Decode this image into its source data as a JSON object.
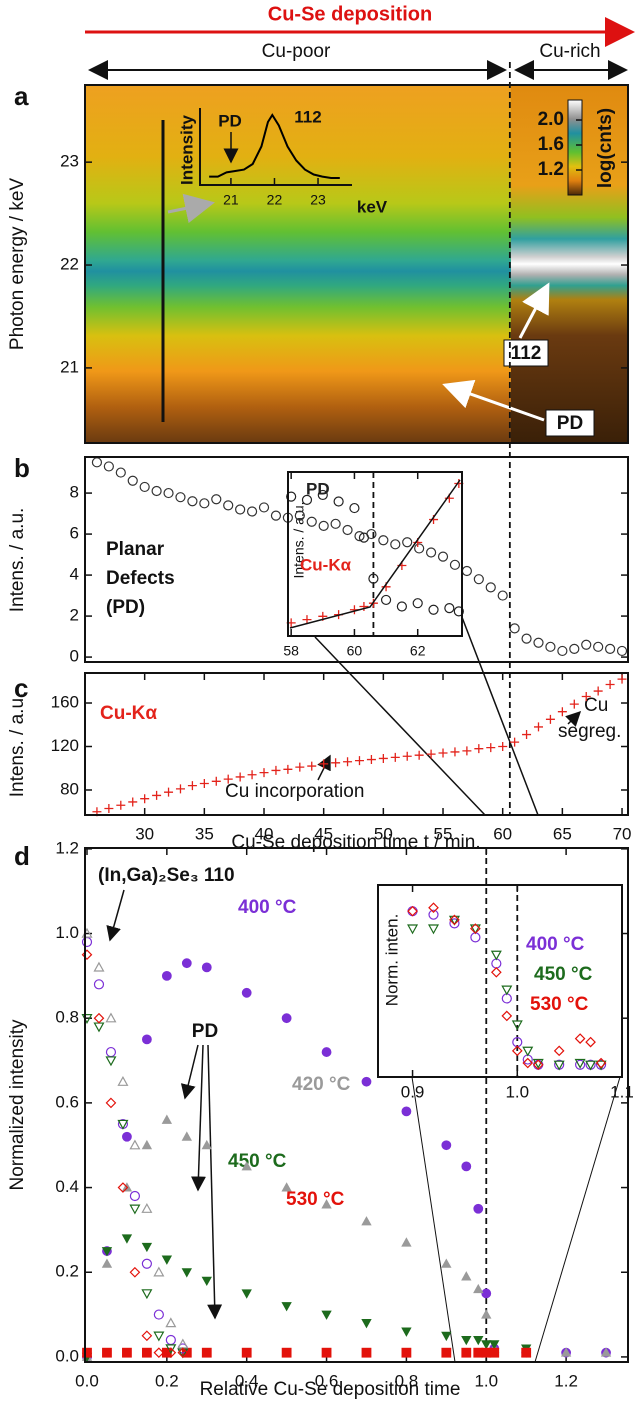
{
  "header": {
    "title": "Cu-Se deposition",
    "regions": [
      "Cu-poor",
      "Cu-rich"
    ]
  },
  "chart_data": [
    {
      "panel": "a",
      "type": "heatmap",
      "ylabel": "Photon energy / keV",
      "ylim": [
        20.27,
        23.75
      ],
      "yticks": [
        21,
        22,
        23
      ],
      "colorbar": {
        "label": "log(cnts)",
        "lim": [
          0.8,
          2.32
        ],
        "ticks": [
          1.2,
          1.6,
          {
            "value": 2.0,
            "label": "2.0"
          }
        ]
      },
      "annotations": [
        "112",
        "PD"
      ]
    },
    {
      "type": "line",
      "ylabel": "Intensity",
      "xunit": "keV",
      "annotations": [
        "PD",
        "112"
      ],
      "color": "#000000",
      "x": [
        20.5,
        20.7,
        20.9,
        21.1,
        21.3,
        21.5,
        21.7,
        21.85,
        21.95,
        22.1,
        22.3,
        22.5,
        22.7,
        22.9,
        23.1,
        23.3,
        23.5
      ],
      "values": [
        0.12,
        0.12,
        0.18,
        0.2,
        0.22,
        0.3,
        0.55,
        0.9,
        1.0,
        0.85,
        0.55,
        0.35,
        0.22,
        0.15,
        0.12,
        0.1,
        0.1
      ],
      "xlim": [
        20.29,
        23.78
      ],
      "ylim": [
        0,
        1.1
      ],
      "xticks": [
        21,
        22,
        23
      ]
    },
    {
      "panel": "b",
      "type": "scatter",
      "ylabel": "Intens. / a.u.",
      "annotations": [
        "Planar",
        "Defects",
        "(PD)"
      ],
      "marker": "circle-open",
      "color": "#333333",
      "xlim": [
        25,
        70.5
      ],
      "ylim": [
        -0.24,
        9.76
      ],
      "yticks": [
        0,
        2,
        4,
        6,
        8
      ],
      "x": [
        26,
        27,
        28,
        29,
        30,
        31,
        32,
        33,
        34,
        35,
        36,
        37,
        38,
        39,
        40,
        41,
        42,
        43,
        44,
        45,
        46,
        47,
        48,
        49,
        50,
        51,
        52,
        53,
        54,
        55,
        56,
        57,
        58,
        59,
        60,
        61,
        62,
        63,
        64,
        65,
        66,
        67,
        68,
        69,
        70
      ],
      "values": [
        9.5,
        9.3,
        9.0,
        8.6,
        8.3,
        8.1,
        8.0,
        7.8,
        7.6,
        7.5,
        7.7,
        7.4,
        7.2,
        7.1,
        7.3,
        6.9,
        6.8,
        6.9,
        6.6,
        6.4,
        6.5,
        6.2,
        5.9,
        6.0,
        5.7,
        5.5,
        5.6,
        5.3,
        5.1,
        4.9,
        4.5,
        4.2,
        3.8,
        3.4,
        3.0,
        1.4,
        0.9,
        0.7,
        0.5,
        0.3,
        0.4,
        0.6,
        0.5,
        0.4,
        0.3
      ]
    },
    {
      "panel": "c",
      "type": "scatter",
      "ylabel": "Intens. / a.u.",
      "xlabel": "Cu-Se deposition time t / min.",
      "annotations": [
        "Cu-Kα",
        "Cu incorporation",
        "Cu",
        "segreg."
      ],
      "marker": "plus",
      "color": "#e3231b",
      "xlim": [
        25,
        70.5
      ],
      "ylim": [
        57,
        187.6
      ],
      "yticks": [
        80,
        120,
        160
      ],
      "xticks": [
        30,
        35,
        40,
        45,
        50,
        55,
        60,
        65,
        70
      ],
      "vline": 60.6,
      "x": [
        26,
        27,
        28,
        29,
        30,
        31,
        32,
        33,
        34,
        35,
        36,
        37,
        38,
        39,
        40,
        41,
        42,
        43,
        44,
        45,
        46,
        47,
        48,
        49,
        50,
        51,
        52,
        53,
        54,
        55,
        56,
        57,
        58,
        59,
        60,
        61,
        62,
        63,
        64,
        65,
        66,
        67,
        68,
        69,
        70
      ],
      "values": [
        60,
        63,
        66,
        69,
        72,
        75,
        78,
        81,
        84,
        86,
        88,
        90,
        92,
        94,
        96,
        98,
        99,
        101,
        102,
        104,
        105,
        106,
        107,
        108,
        109,
        110,
        111,
        112,
        113,
        114,
        115,
        116,
        118,
        119,
        120,
        124,
        131,
        138,
        145,
        152,
        159,
        166,
        171,
        177,
        182
      ]
    },
    {
      "type": "scatter",
      "ylabel": "Intens. / a.u.",
      "xlim": [
        57.9,
        63.4
      ],
      "ylim": [
        0,
        1
      ],
      "xticks": [
        58,
        60,
        62
      ],
      "vline": 60.6,
      "x": [
        58,
        58.5,
        59,
        59.5,
        60,
        60.3,
        60.6,
        61,
        61.5,
        62,
        62.5,
        63,
        63.3
      ],
      "series": [
        {
          "name": "PD",
          "color": "#222222",
          "marker": "circle-open",
          "values": [
            0.85,
            0.83,
            0.86,
            0.82,
            0.78,
            0.6,
            0.35,
            0.22,
            0.18,
            0.2,
            0.16,
            0.17,
            0.15
          ]
        },
        {
          "name": "Cu-Kα",
          "color": "#e3231b",
          "marker": "plus",
          "values": [
            0.08,
            0.1,
            0.12,
            0.13,
            0.16,
            0.18,
            0.2,
            0.3,
            0.43,
            0.57,
            0.71,
            0.84,
            0.93
          ]
        }
      ]
    },
    {
      "panel": "d",
      "type": "scatter",
      "ylabel": "Normalized intensity",
      "xlabel": "Relative Cu-Se deposition time",
      "annotations": [
        "(In,Ga)₂Se₃ 110",
        "PD"
      ],
      "xlim": [
        -0.005,
        1.355
      ],
      "ylim": [
        -0.012,
        1.202
      ],
      "vline": 1.0,
      "xticks": [
        {
          "value": 0,
          "label": "0.0"
        },
        0.2,
        0.4,
        0.6,
        0.8,
        {
          "value": 1,
          "label": "1.0"
        },
        1.2
      ],
      "yticks": [
        {
          "value": 0,
          "label": "0.0"
        },
        0.2,
        0.4,
        0.6,
        0.8,
        {
          "value": 1,
          "label": "1.0"
        },
        1.2
      ],
      "x": [
        0,
        0.05,
        0.1,
        0.15,
        0.2,
        0.25,
        0.3,
        0.4,
        0.5,
        0.6,
        0.7,
        0.8,
        0.9,
        0.95,
        0.98,
        1.0,
        1.02,
        1.1,
        1.2,
        1.3
      ],
      "series": [
        {
          "name": "400 °C",
          "color": "#7b2fd6",
          "marker": "circle",
          "values": [
            0,
            0.25,
            0.52,
            0.75,
            0.9,
            0.93,
            0.92,
            0.86,
            0.8,
            0.72,
            0.65,
            0.58,
            0.5,
            0.45,
            0.35,
            0.15,
            0.02,
            0.01,
            0.01,
            0.01
          ]
        },
        {
          "name": "420 °C",
          "color": "#9a9a9a",
          "marker": "triangle",
          "values": [
            0,
            0.22,
            0.4,
            0.5,
            0.56,
            0.52,
            0.5,
            0.45,
            0.4,
            0.36,
            0.32,
            0.27,
            0.22,
            0.19,
            0.16,
            0.1,
            0.02,
            0.01,
            0.01,
            0.01
          ]
        },
        {
          "name": "450 °C",
          "color": "#1d6b1d",
          "marker": "triangle-down",
          "values": [
            0,
            0.25,
            0.28,
            0.26,
            0.23,
            0.2,
            0.18,
            0.15,
            0.12,
            0.1,
            0.08,
            0.06,
            0.05,
            0.04,
            0.04,
            0.03,
            0.03,
            0.02,
            null,
            null
          ]
        },
        {
          "name": "530 °C",
          "color": "#e3120b",
          "marker": "square",
          "values": [
            0.01,
            0.01,
            0.01,
            0.01,
            0.01,
            0.01,
            0.01,
            0.01,
            0.01,
            0.01,
            0.01,
            0.01,
            0.01,
            0.01,
            0.01,
            0.01,
            0.01,
            0.01,
            null,
            null
          ]
        },
        {
          "color": "#7b2fd6",
          "marker": "circle-open",
          "x": [
            0,
            0.03,
            0.06,
            0.09,
            0.12,
            0.15,
            0.18,
            0.21,
            0.24
          ],
          "values": [
            0.98,
            0.88,
            0.72,
            0.55,
            0.38,
            0.22,
            0.1,
            0.04,
            0.02
          ]
        },
        {
          "color": "#9a9a9a",
          "marker": "triangle-open",
          "x": [
            0,
            0.03,
            0.06,
            0.09,
            0.12,
            0.15,
            0.18,
            0.21,
            0.24
          ],
          "values": [
            1.0,
            0.92,
            0.8,
            0.65,
            0.5,
            0.35,
            0.2,
            0.08,
            0.03
          ]
        },
        {
          "color": "#1d6b1d",
          "marker": "triangle-down-open",
          "x": [
            0,
            0.03,
            0.06,
            0.09,
            0.12,
            0.15,
            0.18,
            0.21,
            0.24
          ],
          "values": [
            0.8,
            0.78,
            0.7,
            0.55,
            0.35,
            0.15,
            0.05,
            0.02,
            0.01
          ]
        },
        {
          "color": "#e3120b",
          "marker": "diamond-open",
          "x": [
            0,
            0.03,
            0.06,
            0.09,
            0.12,
            0.15,
            0.18,
            0.21,
            0.24
          ],
          "values": [
            0.95,
            0.8,
            0.6,
            0.4,
            0.2,
            0.05,
            0.01,
            0.01,
            0.01
          ]
        }
      ]
    },
    {
      "type": "scatter",
      "ylabel": "Norm. inten.",
      "xlim": [
        0.867,
        1.1
      ],
      "ylim": [
        0,
        1.1
      ],
      "vline": 1.0,
      "xticks": [
        0.9,
        {
          "value": 1,
          "label": "1.0"
        },
        1.1
      ],
      "x": [
        0.9,
        0.92,
        0.94,
        0.96,
        0.98,
        0.99,
        1.0,
        1.01,
        1.02,
        1.04,
        1.06,
        1.07,
        1.08
      ],
      "series": [
        {
          "name": "400 °C",
          "color": "#7b2fd6",
          "marker": "circle-open",
          "values": [
            0.95,
            0.93,
            0.88,
            0.8,
            0.65,
            0.45,
            0.2,
            0.1,
            0.07,
            0.07,
            0.07,
            0.07,
            0.07
          ]
        },
        {
          "name": "450 °C",
          "color": "#1d6b1d",
          "marker": "triangle-down-open",
          "values": [
            0.85,
            0.85,
            0.9,
            0.85,
            0.7,
            0.5,
            0.3,
            0.15,
            0.08,
            0.07,
            0.08,
            0.07,
            0.07
          ]
        },
        {
          "name": "530 °C",
          "color": "#e3120b",
          "marker": "diamond-open",
          "values": [
            0.95,
            0.97,
            0.9,
            0.85,
            0.6,
            0.35,
            0.15,
            0.08,
            0.07,
            0.15,
            0.22,
            0.2,
            0.08
          ]
        }
      ]
    }
  ]
}
